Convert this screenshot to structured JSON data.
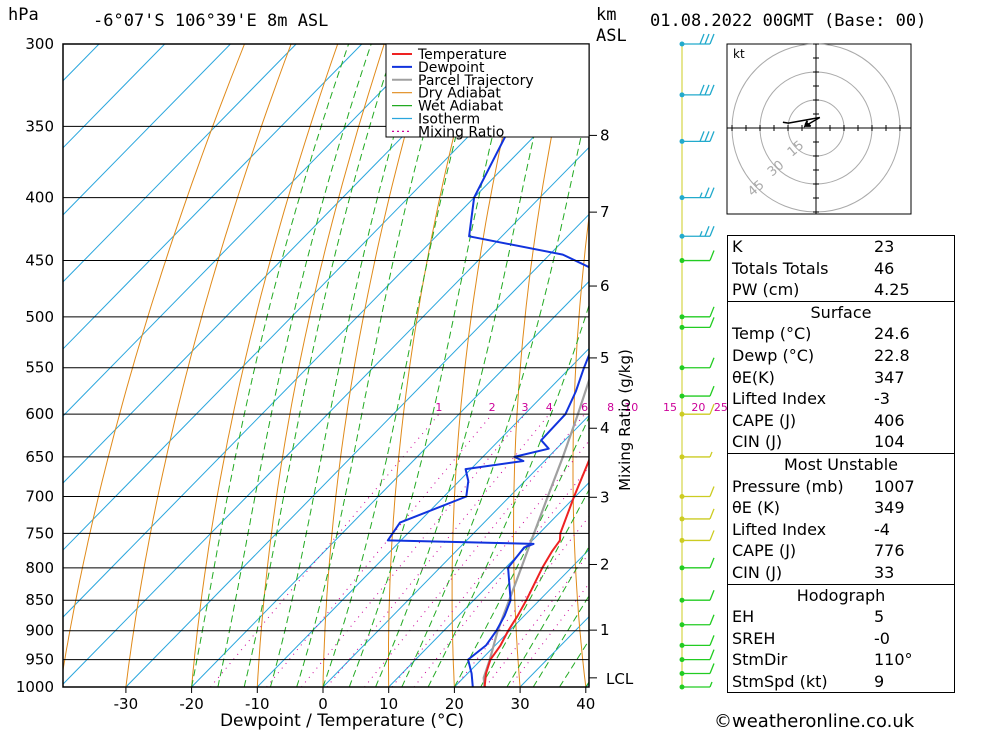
{
  "header": {
    "hpa_unit": "hPa",
    "location": "-6°07'S  106°39'E  8m  ASL",
    "km_unit": "km",
    "asl_label": "ASL",
    "datetime": "01.08.2022  00GMT  (Base: 00)"
  },
  "chart_data": {
    "type": "skew-t",
    "xlabel": "Dewpoint / Temperature (°C)",
    "right_axis_label": "Mixing Ratio (g/kg)",
    "x_ticks": [
      -30,
      -20,
      -10,
      0,
      10,
      20,
      30,
      40
    ],
    "xlim": [
      -40,
      40
    ],
    "pressure_ticks": [
      300,
      350,
      400,
      450,
      500,
      550,
      600,
      650,
      700,
      750,
      800,
      850,
      900,
      950,
      1000
    ],
    "plim": [
      1000,
      300
    ],
    "height_ticks_km": [
      1,
      2,
      3,
      4,
      5,
      6,
      7,
      8
    ],
    "height_tick_pressures": [
      899,
      795,
      701,
      616,
      540,
      472,
      411,
      356
    ],
    "lcl_label": "LCL",
    "lcl_pressure": 983,
    "mixing_ratio_labels": [
      "1",
      "2",
      "3",
      "4",
      "6",
      "8",
      "10",
      "15",
      "20",
      "25"
    ],
    "mixing_ratio_values": [
      1,
      2,
      3,
      4,
      6,
      8,
      10,
      15,
      20,
      25
    ],
    "legend": [
      "Temperature",
      "Dewpoint",
      "Parcel Trajectory",
      "Dry Adiabat",
      "Wet Adiabat",
      "Isotherm",
      "Mixing Ratio"
    ],
    "colors": {
      "temperature": "#ee2222",
      "dewpoint": "#1133dd",
      "parcel": "#a0a0a0",
      "dry_adiabat": "#e08a1a",
      "wet_adiabat": "#22aa22",
      "isotherm": "#2aa6dd",
      "mixing_ratio": "#cc0099"
    },
    "temperature": [
      [
        1000,
        24.6
      ],
      [
        975,
        22.8
      ],
      [
        950,
        21.4
      ],
      [
        925,
        20.8
      ],
      [
        900,
        19.8
      ],
      [
        875,
        19.0
      ],
      [
        850,
        18.0
      ],
      [
        800,
        15.6
      ],
      [
        775,
        14.6
      ],
      [
        760,
        14.2
      ],
      [
        750,
        13.2
      ],
      [
        700,
        9.8
      ],
      [
        650,
        6.4
      ],
      [
        600,
        1.8
      ],
      [
        575,
        0.4
      ],
      [
        550,
        -2.6
      ],
      [
        500,
        -7.8
      ],
      [
        490,
        -8.4
      ],
      [
        480,
        -9.3
      ],
      [
        465,
        -11.5
      ],
      [
        450,
        -13.6
      ],
      [
        440,
        -13.8
      ],
      [
        430,
        -15.4
      ],
      [
        400,
        -20.3
      ],
      [
        360,
        -27.8
      ],
      [
        300,
        -37
      ]
    ],
    "dewpoint": [
      [
        1000,
        22.8
      ],
      [
        975,
        20.6
      ],
      [
        950,
        18.0
      ],
      [
        925,
        18.6
      ],
      [
        900,
        18.0
      ],
      [
        875,
        17.0
      ],
      [
        850,
        15.6
      ],
      [
        800,
        10.4
      ],
      [
        770,
        9.8
      ],
      [
        765,
        10.7
      ],
      [
        760,
        -12.0
      ],
      [
        735,
        -12.8
      ],
      [
        700,
        -6.6
      ],
      [
        680,
        -8.6
      ],
      [
        665,
        -10.8
      ],
      [
        655,
        -3.2
      ],
      [
        650,
        -5.2
      ],
      [
        640,
        -1.2
      ],
      [
        630,
        -3.6
      ],
      [
        600,
        -3.8
      ],
      [
        575,
        -5.6
      ],
      [
        550,
        -7.9
      ],
      [
        500,
        -12.4
      ],
      [
        490,
        -11.6
      ],
      [
        485,
        -15.8
      ],
      [
        465,
        -17.0
      ],
      [
        445,
        -28.0
      ],
      [
        430,
        -45.0
      ],
      [
        400,
        -50.0
      ],
      [
        300,
        -61.0
      ]
    ],
    "parcel": [
      [
        1000,
        24.6
      ],
      [
        983,
        23.1
      ],
      [
        950,
        21.3
      ],
      [
        900,
        18.2
      ],
      [
        850,
        15.4
      ],
      [
        800,
        12.4
      ],
      [
        750,
        9.2
      ],
      [
        700,
        5.8
      ],
      [
        650,
        2.2
      ],
      [
        600,
        -1.9
      ],
      [
        550,
        -6.5
      ],
      [
        500,
        -11.9
      ],
      [
        450,
        -18.2
      ],
      [
        400,
        -25.6
      ],
      [
        360,
        -32.5
      ]
    ],
    "hodograph": {
      "unit_label": "kt",
      "ring_labels": [
        "15",
        "30",
        "45"
      ],
      "ring_values": [
        15,
        30,
        45
      ]
    },
    "wind_profile": [
      {
        "p": 300,
        "dir": 100,
        "spd": 30
      },
      {
        "p": 330,
        "dir": 100,
        "spd": 30
      },
      {
        "p": 360,
        "dir": 100,
        "spd": 30
      },
      {
        "p": 400,
        "dir": 100,
        "spd": 25
      },
      {
        "p": 430,
        "dir": 100,
        "spd": 25
      },
      {
        "p": 450,
        "dir": 200,
        "spd": 10
      },
      {
        "p": 500,
        "dir": 100,
        "spd": 10
      },
      {
        "p": 510,
        "dir": 100,
        "spd": 10
      },
      {
        "p": 550,
        "dir": 100,
        "spd": 10
      },
      {
        "p": 580,
        "dir": 100,
        "spd": 10
      },
      {
        "p": 600,
        "dir": 110,
        "spd": 10
      },
      {
        "p": 650,
        "dir": 110,
        "spd": 5
      },
      {
        "p": 700,
        "dir": 100,
        "spd": 10
      },
      {
        "p": 730,
        "dir": 130,
        "spd": 10
      },
      {
        "p": 760,
        "dir": 130,
        "spd": 10
      },
      {
        "p": 800,
        "dir": 110,
        "spd": 10
      },
      {
        "p": 850,
        "dir": 100,
        "spd": 10
      },
      {
        "p": 890,
        "dir": 100,
        "spd": 10
      },
      {
        "p": 925,
        "dir": 110,
        "spd": 10
      },
      {
        "p": 950,
        "dir": 120,
        "spd": 10
      },
      {
        "p": 975,
        "dir": 120,
        "spd": 10
      },
      {
        "p": 1000,
        "dir": 110,
        "spd": 5
      }
    ],
    "wind_colors": {
      "upper": "#22aacc",
      "mid": "#22cc22",
      "lower": "#cccc22"
    }
  },
  "indices": {
    "top": [
      {
        "label": "K",
        "value": "23"
      },
      {
        "label": "Totals Totals",
        "value": "46"
      },
      {
        "label": "PW (cm)",
        "value": "4.25"
      }
    ],
    "surface": {
      "title": "Surface",
      "rows": [
        {
          "label": "Temp (°C)",
          "value": "24.6"
        },
        {
          "label": "Dewp (°C)",
          "value": "22.8"
        },
        {
          "label": "θE(K)",
          "value": "347"
        },
        {
          "label": "Lifted Index",
          "value": "-3"
        },
        {
          "label": "CAPE (J)",
          "value": "406"
        },
        {
          "label": "CIN (J)",
          "value": "104"
        }
      ]
    },
    "most_unstable": {
      "title": "Most Unstable",
      "rows": [
        {
          "label": "Pressure (mb)",
          "value": "1007"
        },
        {
          "label": "θE (K)",
          "value": "349"
        },
        {
          "label": "Lifted Index",
          "value": "-4"
        },
        {
          "label": "CAPE (J)",
          "value": "776"
        },
        {
          "label": "CIN (J)",
          "value": "33"
        }
      ]
    },
    "hodograph_stats": {
      "title": "Hodograph",
      "rows": [
        {
          "label": "EH",
          "value": "5"
        },
        {
          "label": "SREH",
          "value": "-0"
        },
        {
          "label": "StmDir",
          "value": "110°"
        },
        {
          "label": "StmSpd (kt)",
          "value": "9"
        }
      ]
    }
  },
  "credit": "©weatheronline.co.uk"
}
